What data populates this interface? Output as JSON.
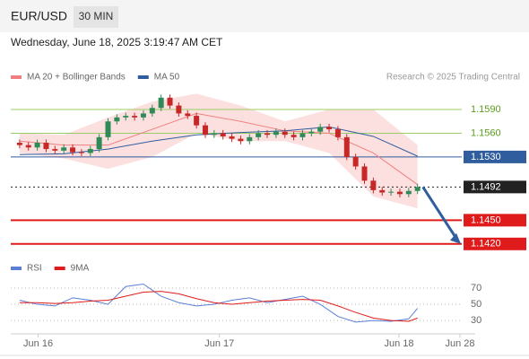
{
  "header": {
    "symbol": "EUR/USD",
    "interval": "30 MIN",
    "timestamp": "Wednesday, June 18, 2025 3:19:47 AM CET"
  },
  "chart_data": [
    {
      "type": "candlestick",
      "source": "Research © 2025 Trading Central",
      "up_color": "#2e8b57",
      "down_color": "#c62828",
      "xlim": [
        0,
        51
      ],
      "ylim": [
        1.1405,
        1.1615
      ],
      "x": [
        1,
        2,
        3,
        4,
        5,
        6,
        7,
        8,
        9,
        10,
        11,
        12,
        13,
        14,
        15,
        16,
        17,
        18,
        19,
        20,
        21,
        22,
        23,
        24,
        25,
        26,
        27,
        28,
        29,
        30,
        31,
        32,
        33,
        34,
        35,
        36,
        37,
        38,
        39,
        40,
        41,
        42,
        43,
        44,
        45,
        46
      ],
      "open": [
        1.1548,
        1.1545,
        1.1542,
        1.1548,
        1.154,
        1.1538,
        1.1542,
        1.1536,
        1.1535,
        1.154,
        1.1555,
        1.1575,
        1.158,
        1.1582,
        1.158,
        1.1585,
        1.1592,
        1.1605,
        1.1595,
        1.1585,
        1.1582,
        1.157,
        1.1558,
        1.156,
        1.1556,
        1.1553,
        1.155,
        1.1555,
        1.156,
        1.1558,
        1.1562,
        1.1558,
        1.1555,
        1.156,
        1.1562,
        1.1568,
        1.1565,
        1.1555,
        1.153,
        1.1518,
        1.15,
        1.1488,
        1.1485,
        1.1486,
        1.1483,
        1.1487
      ],
      "high": [
        1.1552,
        1.1549,
        1.1552,
        1.1552,
        1.1544,
        1.1546,
        1.1546,
        1.154,
        1.1544,
        1.1559,
        1.1579,
        1.1584,
        1.1586,
        1.1586,
        1.1589,
        1.1596,
        1.1609,
        1.1609,
        1.1599,
        1.1589,
        1.1586,
        1.1574,
        1.1564,
        1.1564,
        1.156,
        1.1557,
        1.1559,
        1.1564,
        1.1564,
        1.1566,
        1.1566,
        1.1562,
        1.1564,
        1.1566,
        1.1572,
        1.1572,
        1.1569,
        1.1559,
        1.1534,
        1.1522,
        1.1504,
        1.1492,
        1.149,
        1.149,
        1.1491,
        1.1496
      ],
      "low": [
        1.1541,
        1.1538,
        1.1538,
        1.1536,
        1.1534,
        1.1534,
        1.1532,
        1.1531,
        1.1531,
        1.1536,
        1.1551,
        1.1571,
        1.1576,
        1.1576,
        1.1576,
        1.1581,
        1.1588,
        1.1591,
        1.1581,
        1.1578,
        1.1566,
        1.1554,
        1.1554,
        1.1552,
        1.1549,
        1.1546,
        1.1546,
        1.1551,
        1.1554,
        1.1554,
        1.1554,
        1.1551,
        1.1551,
        1.1556,
        1.1558,
        1.1561,
        1.1551,
        1.1526,
        1.1514,
        1.1496,
        1.1484,
        1.1481,
        1.1481,
        1.1479,
        1.1479,
        1.1483
      ],
      "close": [
        1.1545,
        1.1542,
        1.1548,
        1.154,
        1.1538,
        1.1542,
        1.1536,
        1.1535,
        1.154,
        1.1555,
        1.1575,
        1.158,
        1.1582,
        1.158,
        1.1585,
        1.1592,
        1.1605,
        1.1595,
        1.1585,
        1.1582,
        1.157,
        1.1558,
        1.156,
        1.1556,
        1.1553,
        1.155,
        1.1555,
        1.156,
        1.1558,
        1.1562,
        1.1558,
        1.1555,
        1.156,
        1.1562,
        1.1568,
        1.1565,
        1.1555,
        1.153,
        1.1518,
        1.15,
        1.1488,
        1.1485,
        1.1486,
        1.1483,
        1.1487,
        1.1492
      ],
      "series": [
        {
          "name": "MA 20 + Bollinger Bands",
          "color": "#f08080",
          "band_color": "#fbd3d3",
          "x": [
            1,
            6,
            11,
            16,
            21,
            26,
            31,
            36,
            41,
            46
          ],
          "values": [
            1.155,
            1.1545,
            1.1545,
            1.1565,
            1.1585,
            1.1575,
            1.1563,
            1.156,
            1.1535,
            1.1495
          ],
          "upper": [
            1.156,
            1.1558,
            1.158,
            1.16,
            1.161,
            1.1595,
            1.1575,
            1.159,
            1.159,
            1.1545
          ],
          "lower": [
            1.1535,
            1.1528,
            1.1515,
            1.153,
            1.156,
            1.155,
            1.155,
            1.1535,
            1.148,
            1.1465
          ]
        },
        {
          "name": "MA 50",
          "color": "#2f5d9e",
          "x": [
            1,
            6,
            11,
            16,
            21,
            26,
            31,
            36,
            41,
            46
          ],
          "values": [
            1.1533,
            1.1534,
            1.154,
            1.155,
            1.1558,
            1.1561,
            1.1563,
            1.1568,
            1.1556,
            1.1531
          ]
        }
      ],
      "levels": [
        {
          "value": 1.159,
          "label": "1.1590",
          "color": "#9ccc65",
          "text_color": "#5a9e1e",
          "box": false,
          "dash": false,
          "width": 1
        },
        {
          "value": 1.156,
          "label": "1.1560",
          "color": "#9ccc65",
          "text_color": "#5a9e1e",
          "box": false,
          "dash": false,
          "width": 1
        },
        {
          "value": 1.153,
          "label": "1.1530",
          "color": "#2f5d9e",
          "text_color": "#ffffff",
          "box": true,
          "dash": false,
          "width": 1
        },
        {
          "value": 1.1492,
          "label": "1.1492",
          "color": "#222222",
          "text_color": "#ffffff",
          "box": true,
          "dash": true,
          "width": 1
        },
        {
          "value": 1.145,
          "label": "1.1450",
          "color": "#e01b1b",
          "text_color": "#ffffff",
          "box": true,
          "dash": false,
          "width": 2
        },
        {
          "value": 1.142,
          "label": "1.1420",
          "color": "#e01b1b",
          "text_color": "#ffffff",
          "box": true,
          "dash": false,
          "width": 2
        }
      ]
    },
    {
      "type": "line",
      "xlim": [
        0,
        51
      ],
      "ylim": [
        19,
        90
      ],
      "yticks": [
        70,
        50,
        30
      ],
      "xticks": [
        {
          "value": 3.1,
          "label": "Jun 16"
        },
        {
          "value": 23.6,
          "label": "Jun 17"
        },
        {
          "value": 43.9,
          "label": "Jun 18"
        },
        {
          "value": 50.8,
          "label": "Jun 28"
        }
      ],
      "series": [
        {
          "name": "RSI",
          "color": "#5b7fd6",
          "x": [
            1,
            3,
            5,
            7,
            9,
            11,
            13,
            15,
            17,
            19,
            21,
            23,
            25,
            27,
            29,
            31,
            33,
            35,
            37,
            39,
            41,
            43,
            45,
            46
          ],
          "values": [
            55,
            50,
            48,
            58,
            55,
            50,
            72,
            75,
            60,
            52,
            48,
            50,
            55,
            58,
            52,
            56,
            60,
            50,
            35,
            28,
            30,
            29,
            32,
            45
          ]
        },
        {
          "name": "9MA",
          "color": "#e01b1b",
          "x": [
            1,
            3,
            5,
            7,
            9,
            11,
            13,
            15,
            17,
            19,
            21,
            23,
            25,
            27,
            29,
            31,
            33,
            35,
            37,
            39,
            41,
            43,
            45,
            46
          ],
          "values": [
            52,
            52,
            51,
            52,
            54,
            55,
            60,
            65,
            66,
            63,
            57,
            52,
            50,
            52,
            54,
            55,
            56,
            55,
            48,
            40,
            33,
            30,
            29,
            33
          ]
        }
      ]
    }
  ]
}
